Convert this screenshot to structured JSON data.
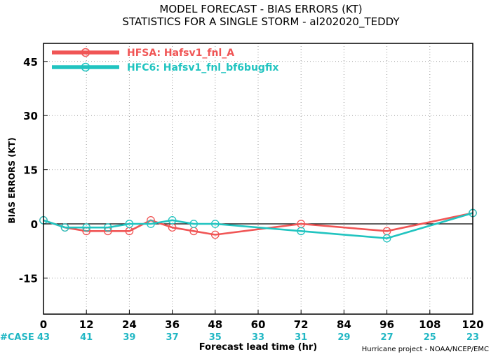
{
  "chart_data": {
    "type": "line",
    "title": "MODEL FORECAST - BIAS ERRORS (KT)",
    "subtitle": "STATISTICS FOR A SINGLE STORM - al202020_TEDDY",
    "xlabel": "Forecast lead time (hr)",
    "ylabel": "BIAS ERRORS (KT)",
    "xlim": [
      0,
      120
    ],
    "ylim": [
      -25,
      50
    ],
    "x_ticks": [
      0,
      12,
      24,
      36,
      48,
      60,
      72,
      84,
      96,
      108,
      120
    ],
    "y_ticks": [
      -15,
      0,
      15,
      30,
      45
    ],
    "grid": true,
    "legend_position": "top-left",
    "series": [
      {
        "name": "HFSA: Hafsv1_fnl_A",
        "color": "#f05555",
        "x": [
          0,
          6,
          12,
          18,
          24,
          30,
          36,
          42,
          48,
          72,
          96,
          120
        ],
        "values": [
          1,
          -1,
          -2,
          -2,
          -2,
          1,
          -1,
          -2,
          -3,
          0,
          -2,
          3
        ]
      },
      {
        "name": "HFC6: Hafsv1_fnl_bf6bugfix",
        "color": "#21c4c0",
        "x": [
          0,
          6,
          12,
          18,
          24,
          30,
          36,
          42,
          48,
          72,
          96,
          120
        ],
        "values": [
          1,
          -1,
          -1,
          -1,
          0,
          0,
          1,
          0,
          0,
          -2,
          -4,
          3
        ]
      }
    ],
    "case_label": "#CASE",
    "case_x": [
      0,
      12,
      24,
      36,
      48,
      60,
      72,
      84,
      96,
      108,
      120
    ],
    "case_counts": [
      "43",
      "41",
      "39",
      "37",
      "35",
      "33",
      "31",
      "29",
      "27",
      "25",
      "23"
    ],
    "credit": "Hurricane project - NOAA/NCEP/EMC",
    "zero_line": 0
  }
}
